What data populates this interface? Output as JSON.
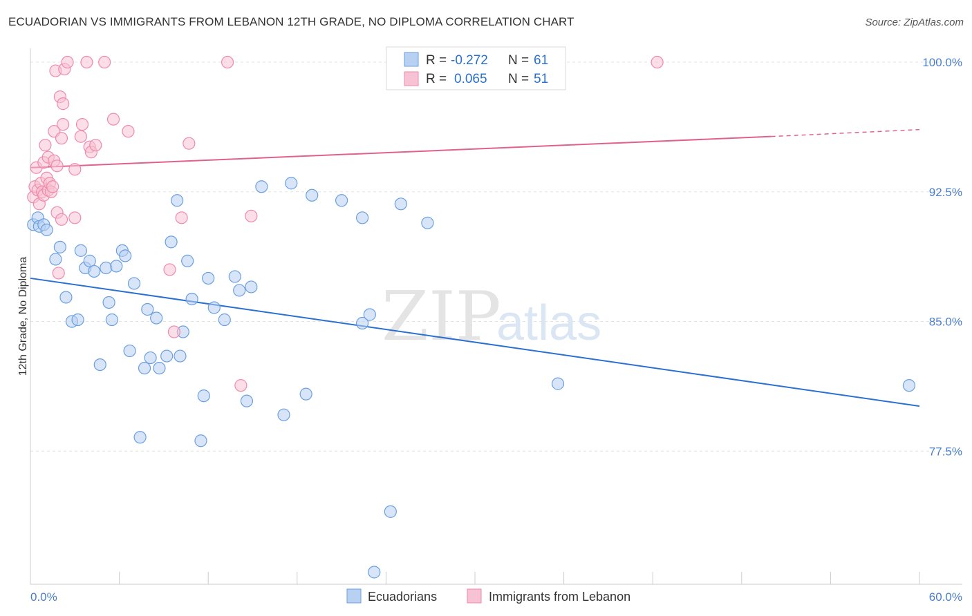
{
  "title": "ECUADORIAN VS IMMIGRANTS FROM LEBANON 12TH GRADE, NO DIPLOMA CORRELATION CHART",
  "source": "Source: ZipAtlas.com",
  "watermark": {
    "zip": "ZIP",
    "atlas": "atlas"
  },
  "chart_data": {
    "type": "scatter",
    "title": "ECUADORIAN VS IMMIGRANTS FROM LEBANON 12TH GRADE, NO DIPLOMA CORRELATION CHART",
    "xlabel": "",
    "ylabel": "12th Grade, No Diploma",
    "xlim": [
      0,
      60
    ],
    "ylim": [
      69.8,
      100.8
    ],
    "x_tick_labels": [
      "0.0%",
      "60.0%"
    ],
    "y_ticks": [
      77.5,
      85.0,
      92.5,
      100.0
    ],
    "y_tick_labels": [
      "77.5%",
      "85.0%",
      "92.5%",
      "100.0%"
    ],
    "grid": true,
    "legend_position": "top-center",
    "stats": [
      {
        "r_label": "R =",
        "r_value": "-0.272",
        "n_label": "N =",
        "n_value": "61"
      },
      {
        "r_label": "R =",
        "r_value": "0.065",
        "n_label": "N =",
        "n_value": "51"
      }
    ],
    "series": [
      {
        "name": "Ecuadorians",
        "color": "#6a9fe0",
        "fill": "#b8d0f2",
        "trend_color": "#2a70d0",
        "trend": {
          "x0": 0,
          "y0": 87.5,
          "x1": 60,
          "y1": 80.1
        },
        "points": [
          [
            0.2,
            90.6
          ],
          [
            0.5,
            91.0
          ],
          [
            0.6,
            90.5
          ],
          [
            0.9,
            90.6
          ],
          [
            1.1,
            90.3
          ],
          [
            1.7,
            88.6
          ],
          [
            2.0,
            89.3
          ],
          [
            2.4,
            86.4
          ],
          [
            2.8,
            85.0
          ],
          [
            3.2,
            85.1
          ],
          [
            3.4,
            89.1
          ],
          [
            3.7,
            88.1
          ],
          [
            4.0,
            88.5
          ],
          [
            4.3,
            87.9
          ],
          [
            4.7,
            82.5
          ],
          [
            5.1,
            88.1
          ],
          [
            5.3,
            86.1
          ],
          [
            5.5,
            85.1
          ],
          [
            5.8,
            88.2
          ],
          [
            6.2,
            89.1
          ],
          [
            6.4,
            88.8
          ],
          [
            6.7,
            83.3
          ],
          [
            7.0,
            87.2
          ],
          [
            7.4,
            78.3
          ],
          [
            7.7,
            82.3
          ],
          [
            7.9,
            85.7
          ],
          [
            8.1,
            82.9
          ],
          [
            8.5,
            85.2
          ],
          [
            8.7,
            82.3
          ],
          [
            9.2,
            83.0
          ],
          [
            9.5,
            89.6
          ],
          [
            9.9,
            92.0
          ],
          [
            10.1,
            83.0
          ],
          [
            10.3,
            84.4
          ],
          [
            10.6,
            88.5
          ],
          [
            10.9,
            86.3
          ],
          [
            11.5,
            78.1
          ],
          [
            11.7,
            80.7
          ],
          [
            12.0,
            87.5
          ],
          [
            12.4,
            85.8
          ],
          [
            13.1,
            85.1
          ],
          [
            13.8,
            87.6
          ],
          [
            14.1,
            86.8
          ],
          [
            14.6,
            80.4
          ],
          [
            14.9,
            87.0
          ],
          [
            15.6,
            92.8
          ],
          [
            17.1,
            79.6
          ],
          [
            17.6,
            93.0
          ],
          [
            18.6,
            80.8
          ],
          [
            19.0,
            92.3
          ],
          [
            21.0,
            92.0
          ],
          [
            22.4,
            91.0
          ],
          [
            22.4,
            84.9
          ],
          [
            22.9,
            85.4
          ],
          [
            23.2,
            70.5
          ],
          [
            24.3,
            74.0
          ],
          [
            25.0,
            91.8
          ],
          [
            26.8,
            90.7
          ],
          [
            35.6,
            81.4
          ],
          [
            59.3,
            81.3
          ]
        ]
      },
      {
        "name": "Immigrants from Lebanon",
        "color": "#f08aab",
        "fill": "#f7c3d4",
        "trend_color": "#e0608e",
        "trend": {
          "x0": 0,
          "y0": 93.9,
          "x1": 50,
          "y1": 95.7
        },
        "trend_dashed": {
          "x0": 50,
          "y0": 95.7,
          "x1": 60,
          "y1": 96.1
        },
        "points": [
          [
            0.2,
            92.2
          ],
          [
            0.3,
            92.8
          ],
          [
            0.4,
            93.9
          ],
          [
            0.5,
            92.6
          ],
          [
            0.6,
            91.8
          ],
          [
            0.7,
            93.0
          ],
          [
            0.8,
            92.5
          ],
          [
            0.9,
            94.2
          ],
          [
            0.9,
            92.3
          ],
          [
            1.0,
            95.2
          ],
          [
            1.1,
            93.3
          ],
          [
            1.2,
            92.6
          ],
          [
            1.2,
            94.5
          ],
          [
            1.3,
            93.0
          ],
          [
            1.4,
            92.5
          ],
          [
            1.5,
            92.8
          ],
          [
            1.6,
            96.0
          ],
          [
            1.6,
            94.3
          ],
          [
            1.7,
            99.5
          ],
          [
            1.8,
            94.0
          ],
          [
            1.8,
            91.3
          ],
          [
            1.9,
            87.8
          ],
          [
            2.0,
            98.0
          ],
          [
            2.1,
            95.6
          ],
          [
            2.1,
            90.9
          ],
          [
            2.2,
            97.6
          ],
          [
            2.2,
            96.4
          ],
          [
            2.3,
            99.6
          ],
          [
            2.5,
            100.0
          ],
          [
            3.0,
            93.8
          ],
          [
            3.0,
            91.0
          ],
          [
            3.4,
            95.7
          ],
          [
            3.5,
            96.4
          ],
          [
            3.8,
            100.0
          ],
          [
            4.0,
            95.1
          ],
          [
            4.1,
            94.8
          ],
          [
            4.4,
            95.2
          ],
          [
            5.0,
            100.0
          ],
          [
            5.6,
            96.7
          ],
          [
            6.6,
            96.0
          ],
          [
            9.4,
            88.0
          ],
          [
            9.7,
            84.4
          ],
          [
            10.2,
            91.0
          ],
          [
            10.7,
            95.3
          ],
          [
            13.3,
            100.0
          ],
          [
            14.2,
            81.3
          ],
          [
            14.9,
            91.1
          ],
          [
            42.3,
            100.0
          ]
        ]
      }
    ]
  }
}
